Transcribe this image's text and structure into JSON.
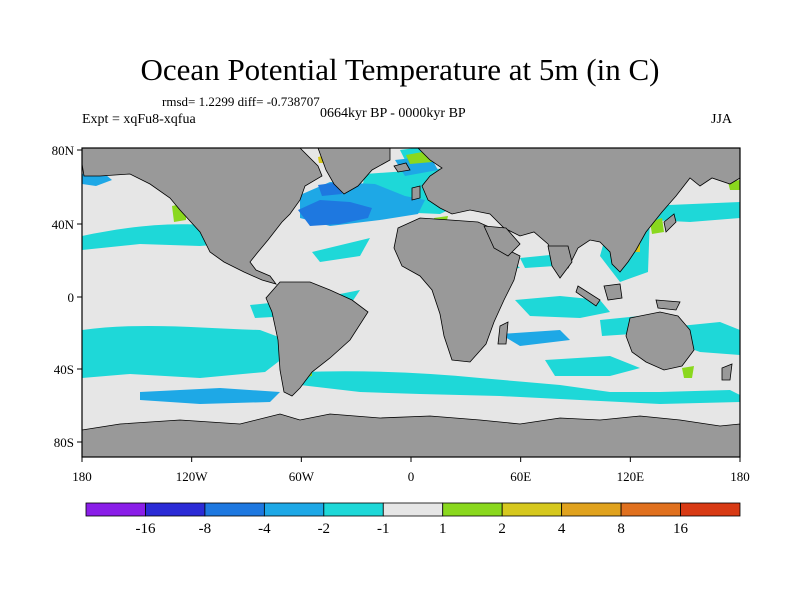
{
  "title": "Ocean Potential Temperature at 5m (in C)",
  "stats": "rmsd= 1.2299 diff= -0.738707",
  "period": "0664kyr BP - 0000kyr BP",
  "experiment": "Expt = xqFu8-xqfua",
  "season": "JJA",
  "axes": {
    "lat_ticks": [
      "80N",
      "40N",
      "0",
      "40S",
      "80S"
    ],
    "lon_ticks": [
      "180",
      "120W",
      "60W",
      "0",
      "60E",
      "120E",
      "180"
    ]
  },
  "colorbar": {
    "labels": [
      "-16",
      "-8",
      "-4",
      "-2",
      "-1",
      "1",
      "2",
      "4",
      "8",
      "16"
    ],
    "colors": [
      "#8a1ee8",
      "#2b2bd6",
      "#1e78e0",
      "#1ea8e6",
      "#1ed8d8",
      "#e6e6e6",
      "#8ad81e",
      "#d6c81e",
      "#e0a21e",
      "#e0701e",
      "#d83a14"
    ]
  },
  "colors": {
    "land": "#999999",
    "ocean_neutral": "#e6e6e6",
    "cooling_light": "#1ed8d8",
    "cooling_mid": "#1ea8e6",
    "cooling_strong": "#1e78e0",
    "warming_light": "#8ad81e",
    "warming_mid": "#d6c81e"
  }
}
